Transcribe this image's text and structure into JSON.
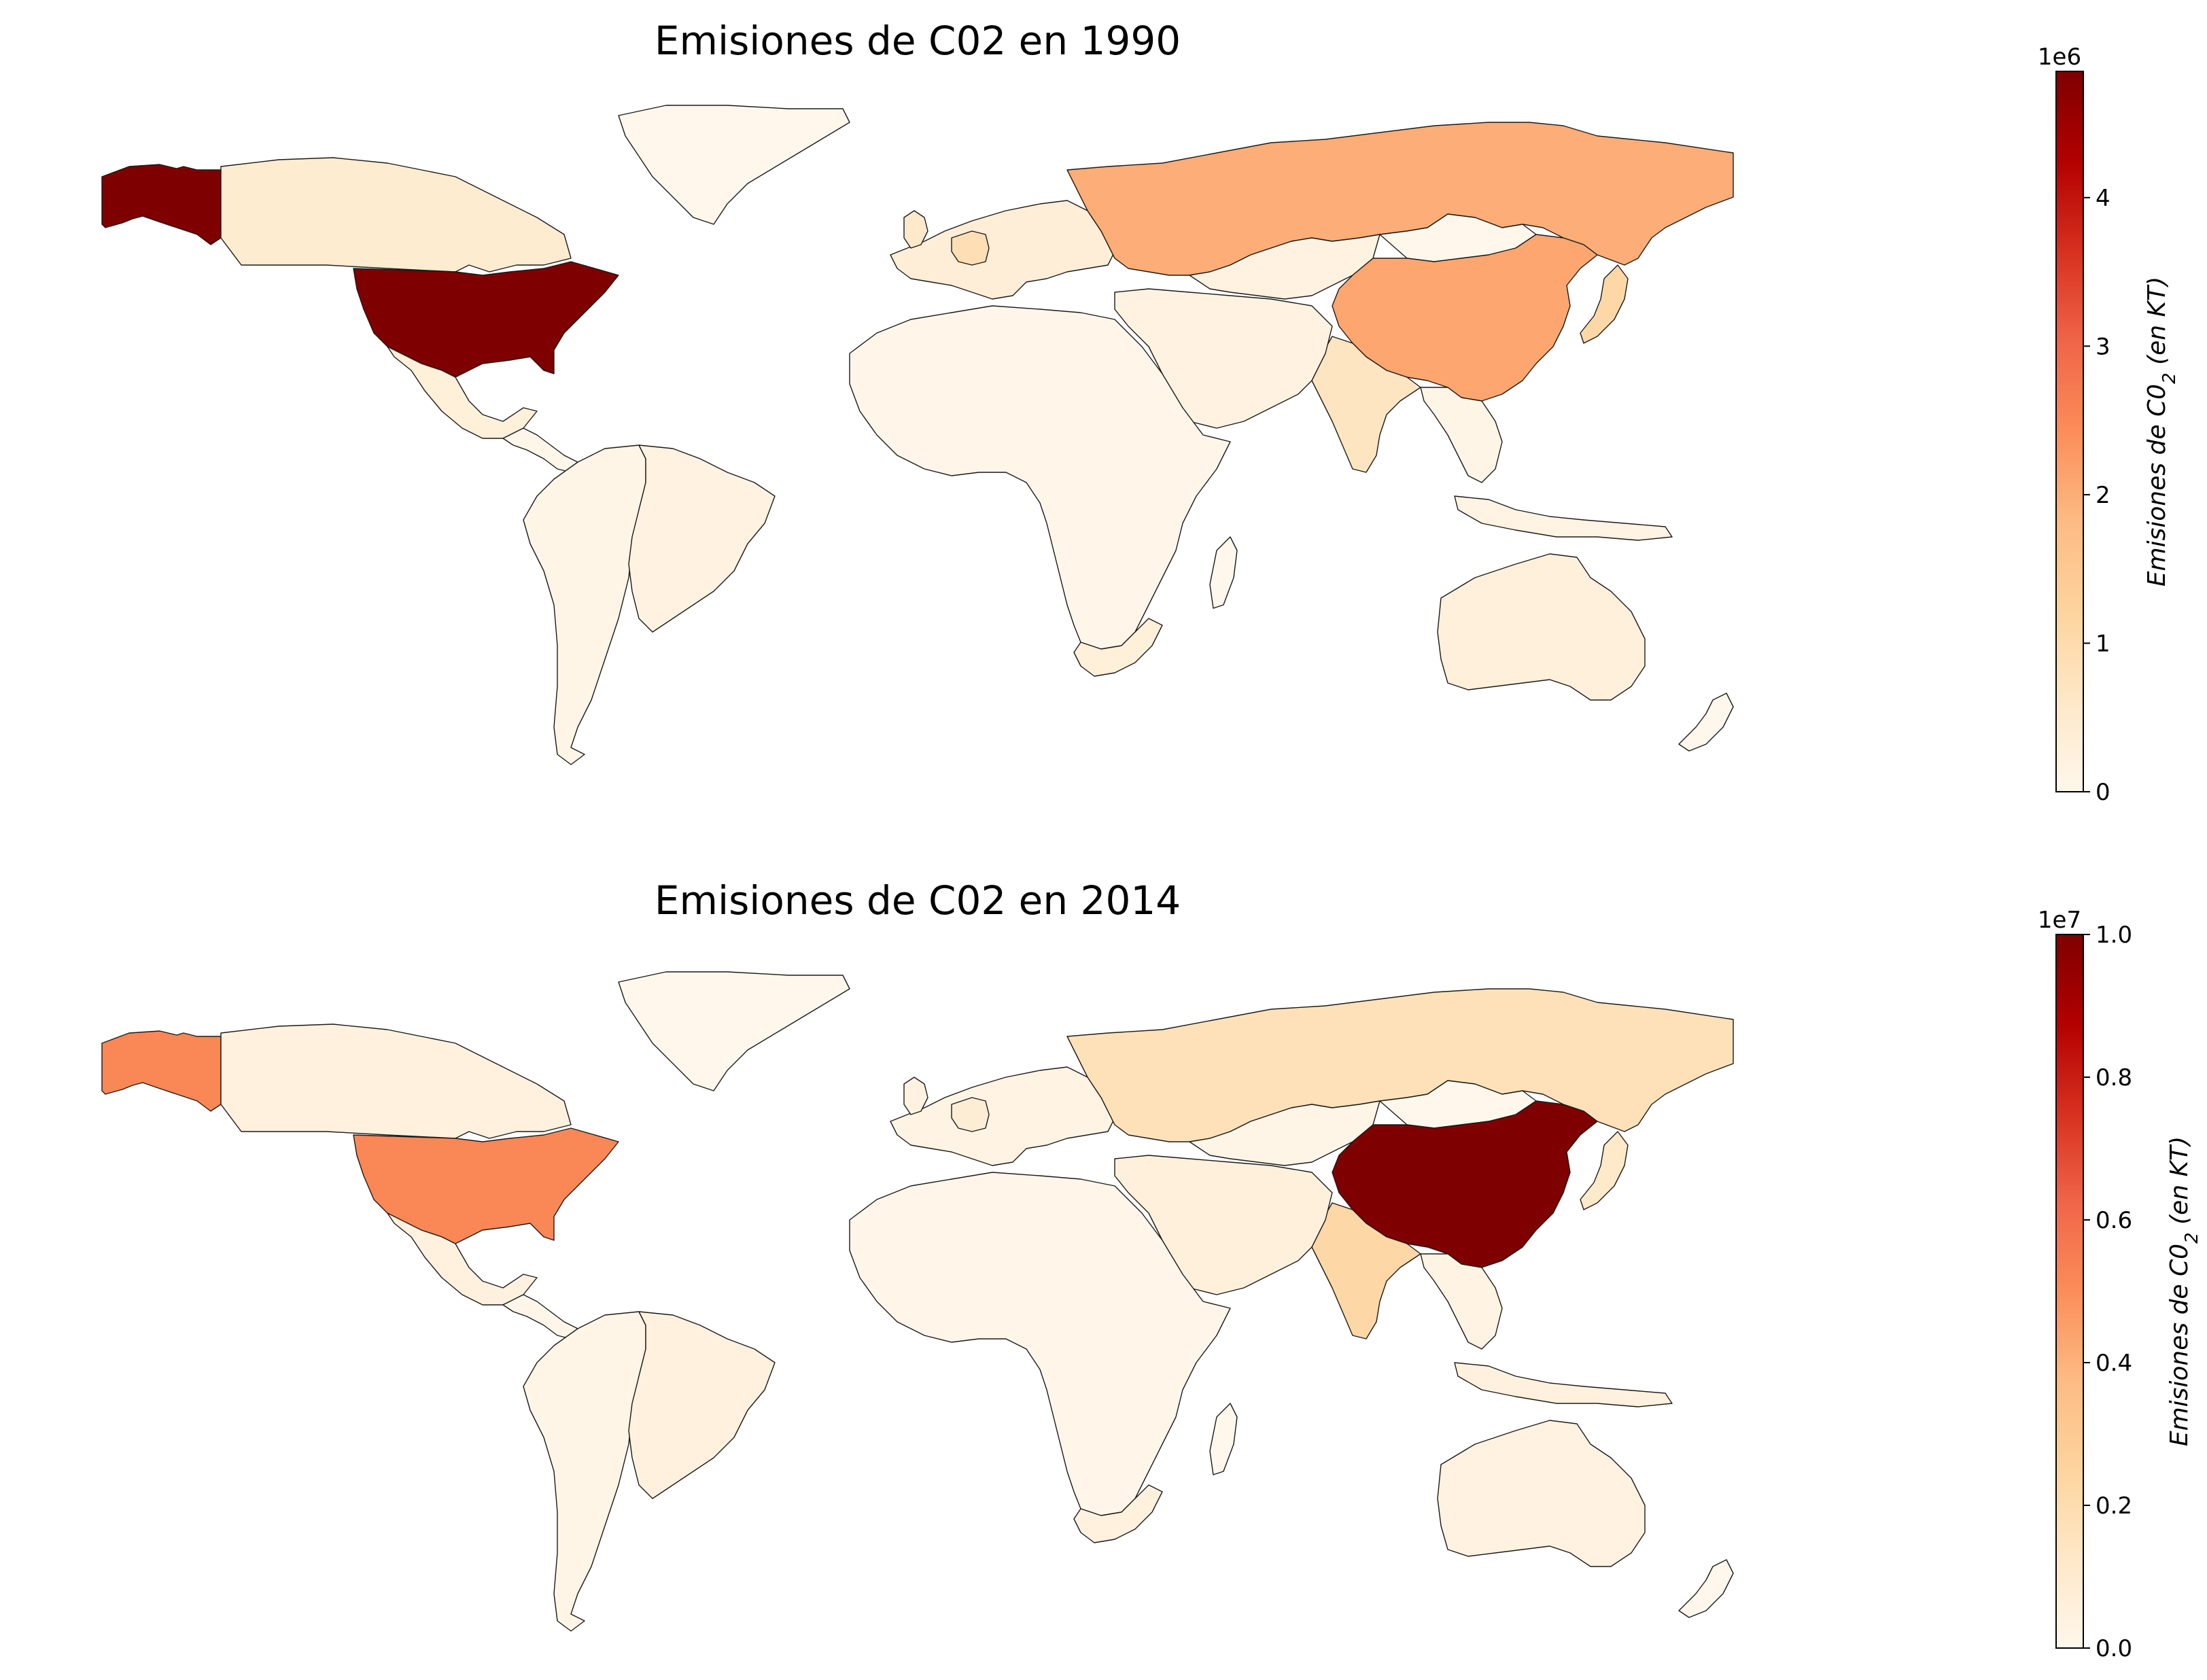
{
  "colorscale": {
    "name": "OrRd",
    "stops": [
      "#fff7ec",
      "#fee8c8",
      "#fdd49e",
      "#fdbb84",
      "#fc8d59",
      "#ef6548",
      "#d7301f",
      "#b30000",
      "#7f0000"
    ]
  },
  "maps": [
    {
      "title": "Emisiones de C02 en 1990",
      "year": 1990,
      "colorbar": {
        "multiplier": "1e6",
        "label_prefix": "Emisiones de C0",
        "label_sub": "2",
        "label_suffix": " (en KT)",
        "min": 0,
        "max": 4.85,
        "ticks": [
          {
            "value": 0,
            "label": "0"
          },
          {
            "value": 1,
            "label": "1"
          },
          {
            "value": 2,
            "label": "2"
          },
          {
            "value": 3,
            "label": "3"
          },
          {
            "value": 4,
            "label": "4"
          }
        ]
      },
      "countries": [
        {
          "id": "north-america-west",
          "name": "United States (Alaska)",
          "value": 4.85
        },
        {
          "id": "canada",
          "name": "Canada",
          "value": 0.45
        },
        {
          "id": "usa",
          "name": "United States",
          "value": 4.85
        },
        {
          "id": "mexico",
          "name": "Mexico",
          "value": 0.3
        },
        {
          "id": "central-america",
          "name": "Central America",
          "value": 0.03
        },
        {
          "id": "south-america",
          "name": "South America",
          "value": 0.1
        },
        {
          "id": "brazil",
          "name": "Brazil",
          "value": 0.2
        },
        {
          "id": "greenland",
          "name": "Greenland",
          "value": 0.0
        },
        {
          "id": "western-europe",
          "name": "Western Europe",
          "value": 0.35
        },
        {
          "id": "germany",
          "name": "Germany",
          "value": 0.9
        },
        {
          "id": "uk",
          "name": "United Kingdom",
          "value": 0.55
        },
        {
          "id": "russia",
          "name": "Russia",
          "value": 2.0
        },
        {
          "id": "kazakhstan",
          "name": "Kazakhstan",
          "value": 0.2
        },
        {
          "id": "mongolia",
          "name": "Mongolia",
          "value": 0.01
        },
        {
          "id": "china",
          "name": "China",
          "value": 2.1
        },
        {
          "id": "japan",
          "name": "Japan",
          "value": 1.1
        },
        {
          "id": "india",
          "name": "India",
          "value": 0.7
        },
        {
          "id": "middle-east",
          "name": "Middle East",
          "value": 0.2
        },
        {
          "id": "africa",
          "name": "Africa",
          "value": 0.05
        },
        {
          "id": "south-africa",
          "name": "South Africa",
          "value": 0.3
        },
        {
          "id": "southeast-asia",
          "name": "Southeast Asia",
          "value": 0.1
        },
        {
          "id": "indonesia",
          "name": "Indonesia",
          "value": 0.15
        },
        {
          "id": "australia",
          "name": "Australia",
          "value": 0.28
        },
        {
          "id": "new-zealand",
          "name": "New Zealand",
          "value": 0.02
        },
        {
          "id": "madagascar",
          "name": "Madagascar",
          "value": 0.0
        }
      ]
    },
    {
      "title": "Emisiones de C02 en 2014",
      "year": 2014,
      "colorbar": {
        "multiplier": "1e7",
        "label_prefix": "Emisiones de C0",
        "label_sub": "2",
        "label_suffix": " (en KT)",
        "min": 0,
        "max": 1.0,
        "ticks": [
          {
            "value": 0,
            "label": "0.0"
          },
          {
            "value": 0.2,
            "label": "0.2"
          },
          {
            "value": 0.4,
            "label": "0.4"
          },
          {
            "value": 0.6,
            "label": "0.6"
          },
          {
            "value": 0.8,
            "label": "0.8"
          },
          {
            "value": 1.0,
            "label": "1.0"
          }
        ]
      },
      "countries": [
        {
          "id": "north-america-west",
          "name": "United States (Alaska)",
          "value": 0.52
        },
        {
          "id": "canada",
          "name": "Canada",
          "value": 0.05
        },
        {
          "id": "usa",
          "name": "United States",
          "value": 0.52
        },
        {
          "id": "mexico",
          "name": "Mexico",
          "value": 0.05
        },
        {
          "id": "central-america",
          "name": "Central America",
          "value": 0.01
        },
        {
          "id": "south-america",
          "name": "South America",
          "value": 0.02
        },
        {
          "id": "brazil",
          "name": "Brazil",
          "value": 0.05
        },
        {
          "id": "greenland",
          "name": "Greenland",
          "value": 0.0
        },
        {
          "id": "western-europe",
          "name": "Western Europe",
          "value": 0.03
        },
        {
          "id": "germany",
          "name": "Germany",
          "value": 0.08
        },
        {
          "id": "uk",
          "name": "United Kingdom",
          "value": 0.04
        },
        {
          "id": "russia",
          "name": "Russia",
          "value": 0.17
        },
        {
          "id": "kazakhstan",
          "name": "Kazakhstan",
          "value": 0.02
        },
        {
          "id": "mongolia",
          "name": "Mongolia",
          "value": 0.002
        },
        {
          "id": "china",
          "name": "China",
          "value": 1.0
        },
        {
          "id": "japan",
          "name": "Japan",
          "value": 0.12
        },
        {
          "id": "india",
          "name": "India",
          "value": 0.23
        },
        {
          "id": "middle-east",
          "name": "Middle East",
          "value": 0.06
        },
        {
          "id": "africa",
          "name": "Africa",
          "value": 0.01
        },
        {
          "id": "south-africa",
          "name": "South Africa",
          "value": 0.05
        },
        {
          "id": "southeast-asia",
          "name": "Southeast Asia",
          "value": 0.03
        },
        {
          "id": "indonesia",
          "name": "Indonesia",
          "value": 0.05
        },
        {
          "id": "australia",
          "name": "Australia",
          "value": 0.04
        },
        {
          "id": "new-zealand",
          "name": "New Zealand",
          "value": 0.004
        },
        {
          "id": "madagascar",
          "name": "Madagascar",
          "value": 0.0
        }
      ]
    }
  ]
}
